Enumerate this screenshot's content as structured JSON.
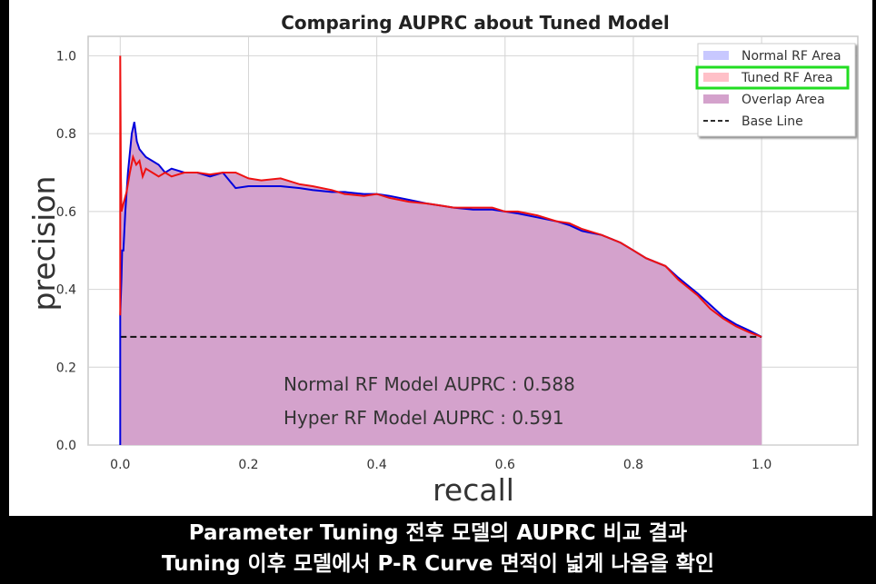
{
  "chart_data": {
    "type": "area",
    "title": "Comparing AUPRC about Tuned Model",
    "xlabel": "recall",
    "ylabel": "precision",
    "xlim": [
      -0.05,
      1.15
    ],
    "ylim": [
      0,
      1.05
    ],
    "xticks": [
      0.0,
      0.2,
      0.4,
      0.6,
      0.8,
      1.0
    ],
    "yticks": [
      0.0,
      0.2,
      0.4,
      0.6,
      0.8,
      1.0
    ],
    "tick_labels_x": [
      "0.0",
      "0.2",
      "0.4",
      "0.6",
      "0.8",
      "1.0"
    ],
    "tick_labels_y": [
      "0.0",
      "0.2",
      "0.4",
      "0.6",
      "0.8",
      "1.0"
    ],
    "grid": true,
    "legend_position": "top-right",
    "legend": [
      "Normal RF Area",
      "Tuned RF Area",
      "Overlap Area",
      "Base Line"
    ],
    "highlighted_legend_entry": "Tuned RF Area",
    "baseline": 0.278,
    "series": [
      {
        "name": "Normal RF",
        "color": "#0000dd",
        "points": [
          [
            0.0,
            0.0
          ],
          [
            0.0,
            0.333
          ],
          [
            0.002,
            0.43
          ],
          [
            0.003,
            0.5
          ],
          [
            0.005,
            0.5
          ],
          [
            0.008,
            0.6
          ],
          [
            0.012,
            0.7
          ],
          [
            0.015,
            0.75
          ],
          [
            0.018,
            0.8
          ],
          [
            0.022,
            0.83
          ],
          [
            0.026,
            0.78
          ],
          [
            0.03,
            0.76
          ],
          [
            0.035,
            0.75
          ],
          [
            0.04,
            0.74
          ],
          [
            0.05,
            0.73
          ],
          [
            0.06,
            0.72
          ],
          [
            0.07,
            0.7
          ],
          [
            0.08,
            0.71
          ],
          [
            0.1,
            0.7
          ],
          [
            0.12,
            0.7
          ],
          [
            0.14,
            0.69
          ],
          [
            0.16,
            0.7
          ],
          [
            0.18,
            0.66
          ],
          [
            0.2,
            0.665
          ],
          [
            0.22,
            0.665
          ],
          [
            0.25,
            0.665
          ],
          [
            0.28,
            0.66
          ],
          [
            0.3,
            0.655
          ],
          [
            0.33,
            0.65
          ],
          [
            0.35,
            0.65
          ],
          [
            0.38,
            0.645
          ],
          [
            0.4,
            0.645
          ],
          [
            0.42,
            0.64
          ],
          [
            0.45,
            0.63
          ],
          [
            0.48,
            0.62
          ],
          [
            0.5,
            0.615
          ],
          [
            0.52,
            0.61
          ],
          [
            0.55,
            0.605
          ],
          [
            0.58,
            0.605
          ],
          [
            0.6,
            0.6
          ],
          [
            0.62,
            0.595
          ],
          [
            0.65,
            0.585
          ],
          [
            0.68,
            0.575
          ],
          [
            0.7,
            0.565
          ],
          [
            0.72,
            0.55
          ],
          [
            0.75,
            0.54
          ],
          [
            0.78,
            0.52
          ],
          [
            0.8,
            0.5
          ],
          [
            0.82,
            0.48
          ],
          [
            0.85,
            0.46
          ],
          [
            0.87,
            0.43
          ],
          [
            0.9,
            0.39
          ],
          [
            0.92,
            0.36
          ],
          [
            0.94,
            0.33
          ],
          [
            0.96,
            0.31
          ],
          [
            0.98,
            0.295
          ],
          [
            1.0,
            0.278
          ]
        ]
      },
      {
        "name": "Tuned RF",
        "color": "#ee1111",
        "points": [
          [
            0.0,
            0.333
          ],
          [
            0.0,
            1.0
          ],
          [
            0.001,
            0.7
          ],
          [
            0.002,
            0.6
          ],
          [
            0.005,
            0.62
          ],
          [
            0.01,
            0.65
          ],
          [
            0.015,
            0.7
          ],
          [
            0.02,
            0.74
          ],
          [
            0.025,
            0.72
          ],
          [
            0.03,
            0.73
          ],
          [
            0.035,
            0.69
          ],
          [
            0.04,
            0.71
          ],
          [
            0.05,
            0.7
          ],
          [
            0.06,
            0.69
          ],
          [
            0.07,
            0.7
          ],
          [
            0.08,
            0.69
          ],
          [
            0.1,
            0.7
          ],
          [
            0.12,
            0.7
          ],
          [
            0.14,
            0.695
          ],
          [
            0.16,
            0.7
          ],
          [
            0.18,
            0.7
          ],
          [
            0.2,
            0.685
          ],
          [
            0.22,
            0.68
          ],
          [
            0.25,
            0.685
          ],
          [
            0.28,
            0.67
          ],
          [
            0.3,
            0.665
          ],
          [
            0.33,
            0.655
          ],
          [
            0.35,
            0.645
          ],
          [
            0.38,
            0.64
          ],
          [
            0.4,
            0.645
          ],
          [
            0.42,
            0.635
          ],
          [
            0.45,
            0.625
          ],
          [
            0.48,
            0.62
          ],
          [
            0.5,
            0.615
          ],
          [
            0.52,
            0.61
          ],
          [
            0.55,
            0.61
          ],
          [
            0.58,
            0.61
          ],
          [
            0.6,
            0.6
          ],
          [
            0.62,
            0.6
          ],
          [
            0.65,
            0.59
          ],
          [
            0.68,
            0.575
          ],
          [
            0.7,
            0.57
          ],
          [
            0.72,
            0.555
          ],
          [
            0.75,
            0.54
          ],
          [
            0.78,
            0.52
          ],
          [
            0.8,
            0.5
          ],
          [
            0.82,
            0.48
          ],
          [
            0.85,
            0.46
          ],
          [
            0.87,
            0.425
          ],
          [
            0.9,
            0.385
          ],
          [
            0.92,
            0.35
          ],
          [
            0.94,
            0.325
          ],
          [
            0.96,
            0.305
          ],
          [
            0.98,
            0.29
          ],
          [
            1.0,
            0.278
          ]
        ]
      }
    ],
    "annotations": [
      "Normal RF Model AUPRC : 0.588",
      "Hyper RF Model AUPRC : 0.591"
    ]
  },
  "colors": {
    "normal_area": "#c8c8ff",
    "tuned_area": "#ffc0c8",
    "overlap_area": "#d4a2cc",
    "highlight_box": "#22dd22"
  },
  "caption": {
    "line1": "Parameter Tuning 전후 모델의 AUPRC 비교 결과",
    "line2": "Tuning 이후 모델에서 P-R Curve 면적이 넓게 나옴을 확인"
  }
}
